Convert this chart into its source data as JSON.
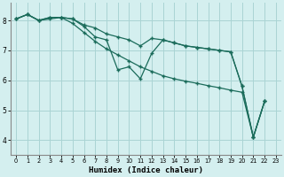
{
  "xlabel": "Humidex (Indice chaleur)",
  "bg_color": "#d4efef",
  "grid_color": "#aad4d4",
  "line_color": "#1a6b5a",
  "xlim": [
    -0.5,
    23.5
  ],
  "ylim": [
    3.5,
    8.6
  ],
  "yticks": [
    4,
    5,
    6,
    7,
    8
  ],
  "xticks": [
    0,
    1,
    2,
    3,
    4,
    5,
    6,
    7,
    8,
    9,
    10,
    11,
    12,
    13,
    14,
    15,
    16,
    17,
    18,
    19,
    20,
    21,
    22,
    23
  ],
  "line1_x": [
    0,
    1,
    2,
    3,
    4,
    5,
    6,
    7,
    8,
    9,
    10,
    11,
    12,
    13,
    14,
    15,
    16,
    17,
    18,
    19,
    20,
    21,
    22
  ],
  "line1_y": [
    8.05,
    8.2,
    8.0,
    8.1,
    8.1,
    8.05,
    7.8,
    7.45,
    7.35,
    6.35,
    6.45,
    6.05,
    6.9,
    7.35,
    7.25,
    7.15,
    7.1,
    7.05,
    7.0,
    6.95,
    5.8,
    4.1,
    5.3
  ],
  "line2_x": [
    0,
    1,
    2,
    3,
    4,
    5,
    6,
    7,
    8,
    9,
    10,
    11,
    12,
    13,
    14,
    15,
    16,
    17,
    18,
    19,
    20,
    21,
    22
  ],
  "line2_y": [
    8.05,
    8.2,
    8.0,
    8.1,
    8.1,
    8.05,
    7.85,
    7.75,
    7.55,
    7.45,
    7.35,
    7.15,
    7.4,
    7.35,
    7.25,
    7.15,
    7.1,
    7.05,
    7.0,
    6.95,
    5.8,
    4.1,
    5.3
  ],
  "line3_x": [
    0,
    1,
    2,
    3,
    4,
    5,
    6,
    7,
    8,
    9,
    10,
    11,
    12,
    13,
    14,
    15,
    16,
    17,
    18,
    19,
    20,
    21,
    22
  ],
  "line3_y": [
    8.05,
    8.2,
    8.0,
    8.05,
    8.1,
    7.9,
    7.6,
    7.3,
    7.05,
    6.85,
    6.65,
    6.45,
    6.3,
    6.15,
    6.05,
    5.97,
    5.9,
    5.82,
    5.75,
    5.67,
    5.6,
    4.1,
    5.3
  ]
}
